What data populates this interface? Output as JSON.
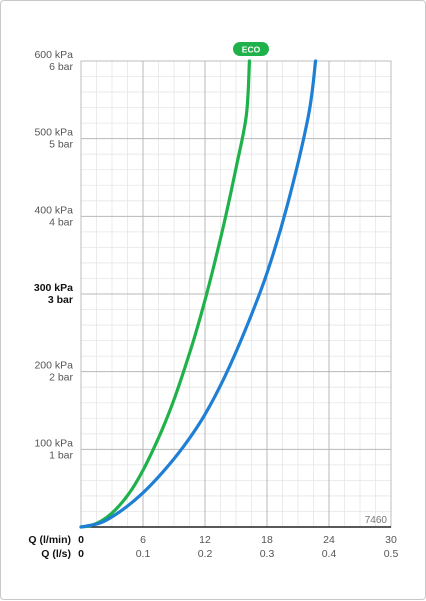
{
  "chart_data": {
    "type": "line",
    "xlabel": "Q (l/min)",
    "xlabel_secondary": "Q (l/s)",
    "xlim": [
      0,
      30
    ],
    "ylim": [
      0,
      600
    ],
    "x_ticks": [
      {
        "value": 0,
        "label": "0",
        "label_secondary": "0"
      },
      {
        "value": 6,
        "label": "6",
        "label_secondary": "0.1"
      },
      {
        "value": 12,
        "label": "12",
        "label_secondary": "0.2"
      },
      {
        "value": 18,
        "label": "18",
        "label_secondary": "0.3"
      },
      {
        "value": 24,
        "label": "24",
        "label_secondary": "0.4"
      },
      {
        "value": 30,
        "label": "30",
        "label_secondary": "0.5"
      }
    ],
    "y_ticks": [
      {
        "value": 100,
        "label": "100 kPa",
        "label_secondary": "1 bar",
        "bold": false
      },
      {
        "value": 200,
        "label": "200 kPa",
        "label_secondary": "2 bar",
        "bold": false
      },
      {
        "value": 300,
        "label": "300 kPa",
        "label_secondary": "3 bar",
        "bold": true
      },
      {
        "value": 400,
        "label": "400 kPa",
        "label_secondary": "4 bar",
        "bold": false
      },
      {
        "value": 500,
        "label": "500 kPa",
        "label_secondary": "5 bar",
        "bold": false
      },
      {
        "value": 600,
        "label": "600 kPa",
        "label_secondary": "6 bar",
        "bold": false
      }
    ],
    "grid": true,
    "minor_grid": true,
    "series": [
      {
        "color": "#1fb24a",
        "x": [
          0,
          1,
          2,
          3,
          4,
          5,
          6,
          7,
          8,
          9,
          10,
          11,
          12,
          13,
          14,
          15,
          16,
          16.3
        ],
        "y": [
          0,
          2,
          8,
          18,
          32,
          50,
          73,
          100,
          130,
          164,
          203,
          245,
          292,
          344,
          400,
          462,
          530,
          600
        ]
      },
      {
        "color": "#1f7fd4",
        "x": [
          0,
          2,
          4,
          6,
          8,
          10,
          12,
          14,
          16,
          18,
          20,
          22,
          22.7
        ],
        "y": [
          0,
          6,
          22,
          44,
          72,
          105,
          145,
          196,
          257,
          327,
          416,
          529,
          600
        ]
      }
    ],
    "badge": {
      "text": "ECO",
      "color": "#1fb24a",
      "series_index": 0
    },
    "code": "7460"
  }
}
